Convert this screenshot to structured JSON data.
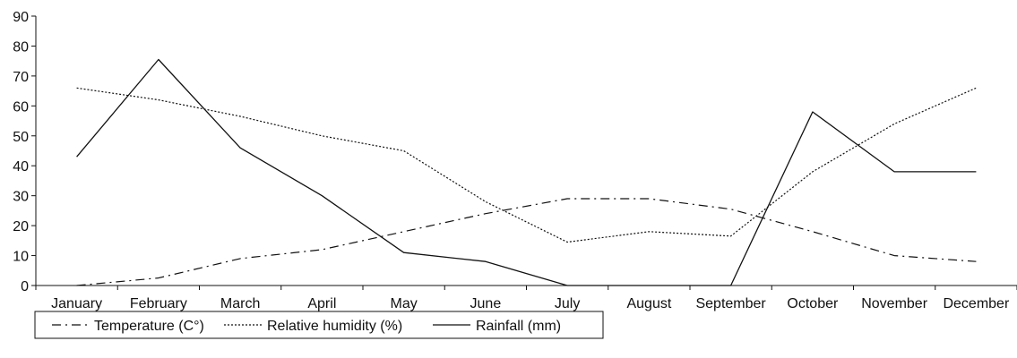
{
  "chart_data": {
    "type": "line",
    "title": "",
    "xlabel": "",
    "ylabel": "",
    "categories": [
      "January",
      "February",
      "March",
      "April",
      "May",
      "June",
      "July",
      "August",
      "September",
      "October",
      "November",
      "December"
    ],
    "ylim": [
      0,
      90
    ],
    "yticks": [
      0,
      10,
      20,
      30,
      40,
      50,
      60,
      70,
      80,
      90
    ],
    "yticks_text": [
      "0",
      "10",
      "20",
      "30",
      "40",
      "50",
      "60",
      "70",
      "80",
      "90"
    ],
    "grid": false,
    "legend_position": "bottom-left",
    "series": [
      {
        "name": "Temperature (C°)",
        "line_style": "dash-dot",
        "color": "#111111",
        "values": [
          0,
          2.5,
          9,
          12,
          18,
          24,
          29,
          29,
          25.5,
          18,
          10,
          8
        ]
      },
      {
        "name": "Relative humidity (%)",
        "line_style": "dotted",
        "color": "#111111",
        "values": [
          66,
          62,
          56.5,
          50,
          45,
          28,
          14.5,
          18,
          16.5,
          38,
          54,
          66
        ]
      },
      {
        "name": "Rainfall (mm)",
        "line_style": "solid",
        "color": "#111111",
        "values": [
          43,
          75.5,
          46,
          30,
          11,
          8,
          0,
          0,
          0,
          58,
          38,
          38
        ]
      }
    ]
  }
}
